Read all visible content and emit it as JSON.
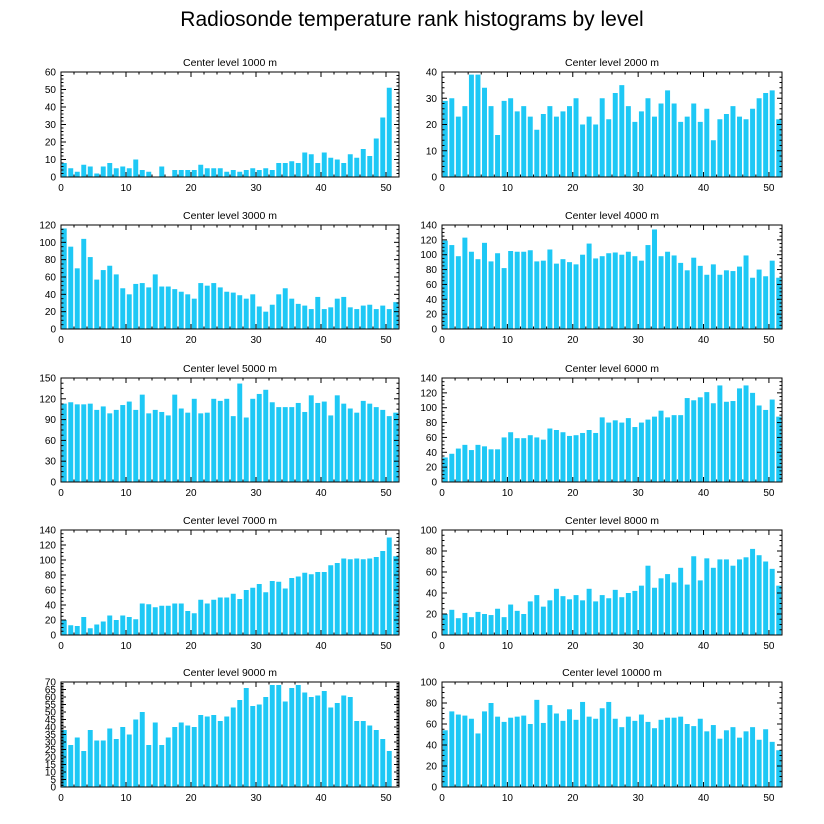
{
  "title": "Radiosonde temperature rank histograms by level",
  "colors": {
    "bar": "#1EC8F5",
    "axis": "#000000"
  },
  "chart_data": [
    {
      "type": "bar",
      "title": "Center level 1000 m",
      "xlabel": "",
      "ylabel": "",
      "xlim": [
        0,
        52
      ],
      "xticks": [
        0,
        10,
        20,
        30,
        40,
        50
      ],
      "ylim": [
        0,
        60
      ],
      "yticks": [
        0,
        10,
        20,
        30,
        40,
        50,
        60
      ],
      "x": [
        0,
        1,
        2,
        3,
        4,
        5,
        6,
        7,
        8,
        9,
        10,
        11,
        12,
        13,
        14,
        15,
        16,
        17,
        18,
        19,
        20,
        21,
        22,
        23,
        24,
        25,
        26,
        27,
        28,
        29,
        30,
        31,
        32,
        33,
        34,
        35,
        36,
        37,
        38,
        39,
        40,
        41,
        42,
        43,
        44,
        45,
        46,
        47,
        48,
        49,
        50,
        51
      ],
      "values": [
        8,
        5,
        3,
        7,
        6,
        2,
        6,
        8,
        5,
        6,
        5,
        10,
        4,
        3,
        0,
        6,
        0,
        4,
        4,
        4,
        4,
        7,
        5,
        5,
        5,
        3,
        4,
        3,
        4,
        5,
        4,
        5,
        4,
        8,
        8,
        9,
        8,
        14,
        13,
        8,
        14,
        11,
        10,
        8,
        13,
        11,
        16,
        12,
        22,
        34,
        51,
        0
      ]
    },
    {
      "type": "bar",
      "title": "Center level 2000 m",
      "xlabel": "",
      "ylabel": "",
      "xlim": [
        0,
        52
      ],
      "xticks": [
        0,
        10,
        20,
        30,
        40,
        50
      ],
      "ylim": [
        0,
        40
      ],
      "yticks": [
        0,
        10,
        20,
        30,
        40
      ],
      "x": [
        0,
        1,
        2,
        3,
        4,
        5,
        6,
        7,
        8,
        9,
        10,
        11,
        12,
        13,
        14,
        15,
        16,
        17,
        18,
        19,
        20,
        21,
        22,
        23,
        24,
        25,
        26,
        27,
        28,
        29,
        30,
        31,
        32,
        33,
        34,
        35,
        36,
        37,
        38,
        39,
        40,
        41,
        42,
        43,
        44,
        45,
        46,
        47,
        48,
        49,
        50,
        51
      ],
      "values": [
        29,
        30,
        23,
        27,
        39,
        39,
        34,
        27,
        16,
        29,
        30,
        25,
        27,
        23,
        18,
        24,
        27,
        23,
        25,
        27,
        30,
        20,
        23,
        20,
        30,
        22,
        32,
        35,
        27,
        21,
        25,
        30,
        23,
        28,
        33,
        28,
        21,
        23,
        28,
        21,
        26,
        14,
        22,
        24,
        27,
        23,
        22,
        26,
        30,
        32,
        33,
        22
      ]
    },
    {
      "type": "bar",
      "title": "Center level 3000 m",
      "xlabel": "",
      "ylabel": "",
      "xlim": [
        0,
        52
      ],
      "xticks": [
        0,
        10,
        20,
        30,
        40,
        50
      ],
      "ylim": [
        0,
        120
      ],
      "yticks": [
        0,
        20,
        40,
        60,
        80,
        100,
        120
      ],
      "x": [
        0,
        1,
        2,
        3,
        4,
        5,
        6,
        7,
        8,
        9,
        10,
        11,
        12,
        13,
        14,
        15,
        16,
        17,
        18,
        19,
        20,
        21,
        22,
        23,
        24,
        25,
        26,
        27,
        28,
        29,
        30,
        31,
        32,
        33,
        34,
        35,
        36,
        37,
        38,
        39,
        40,
        41,
        42,
        43,
        44,
        45,
        46,
        47,
        48,
        49,
        50,
        51
      ],
      "values": [
        116,
        95,
        70,
        104,
        83,
        57,
        68,
        73,
        63,
        47,
        40,
        52,
        53,
        48,
        63,
        49,
        49,
        46,
        43,
        40,
        35,
        53,
        50,
        53,
        48,
        43,
        42,
        39,
        35,
        40,
        26,
        20,
        28,
        40,
        47,
        35,
        29,
        27,
        23,
        37,
        23,
        25,
        35,
        37,
        25,
        23,
        27,
        28,
        23,
        27,
        23,
        31
      ]
    },
    {
      "type": "bar",
      "title": "Center level 4000 m",
      "xlabel": "",
      "ylabel": "",
      "xlim": [
        0,
        52
      ],
      "xticks": [
        0,
        10,
        20,
        30,
        40,
        50
      ],
      "ylim": [
        0,
        140
      ],
      "yticks": [
        0,
        20,
        40,
        60,
        80,
        100,
        120,
        140
      ],
      "x": [
        0,
        1,
        2,
        3,
        4,
        5,
        6,
        7,
        8,
        9,
        10,
        11,
        12,
        13,
        14,
        15,
        16,
        17,
        18,
        19,
        20,
        21,
        22,
        23,
        24,
        25,
        26,
        27,
        28,
        29,
        30,
        31,
        32,
        33,
        34,
        35,
        36,
        37,
        38,
        39,
        40,
        41,
        42,
        43,
        44,
        45,
        46,
        47,
        48,
        49,
        50,
        51
      ],
      "values": [
        119,
        113,
        98,
        123,
        104,
        94,
        116,
        91,
        102,
        82,
        105,
        104,
        104,
        106,
        91,
        92,
        107,
        88,
        94,
        90,
        87,
        100,
        115,
        95,
        98,
        102,
        103,
        100,
        104,
        98,
        92,
        113,
        134,
        98,
        104,
        99,
        89,
        79,
        96,
        85,
        73,
        87,
        73,
        79,
        78,
        84,
        99,
        69,
        80,
        71,
        92,
        69
      ]
    },
    {
      "type": "bar",
      "title": "Center level 5000 m",
      "xlabel": "",
      "ylabel": "",
      "xlim": [
        0,
        52
      ],
      "xticks": [
        0,
        10,
        20,
        30,
        40,
        50
      ],
      "ylim": [
        0,
        150
      ],
      "yticks": [
        0,
        30,
        60,
        90,
        120,
        150
      ],
      "x": [
        0,
        1,
        2,
        3,
        4,
        5,
        6,
        7,
        8,
        9,
        10,
        11,
        12,
        13,
        14,
        15,
        16,
        17,
        18,
        19,
        20,
        21,
        22,
        23,
        24,
        25,
        26,
        27,
        28,
        29,
        30,
        31,
        32,
        33,
        34,
        35,
        36,
        37,
        38,
        39,
        40,
        41,
        42,
        43,
        44,
        45,
        46,
        47,
        48,
        49,
        50,
        51
      ],
      "values": [
        113,
        115,
        112,
        112,
        113,
        104,
        109,
        99,
        104,
        111,
        116,
        104,
        126,
        99,
        104,
        101,
        96,
        126,
        106,
        100,
        120,
        99,
        100,
        120,
        117,
        120,
        95,
        142,
        93,
        120,
        127,
        133,
        115,
        108,
        108,
        108,
        114,
        101,
        125,
        114,
        116,
        96,
        125,
        113,
        106,
        100,
        117,
        113,
        108,
        104,
        95,
        100
      ]
    },
    {
      "type": "bar",
      "title": "Center level 6000 m",
      "xlabel": "",
      "ylabel": "",
      "xlim": [
        0,
        52
      ],
      "xticks": [
        0,
        10,
        20,
        30,
        40,
        50
      ],
      "ylim": [
        0,
        140
      ],
      "yticks": [
        0,
        20,
        40,
        60,
        80,
        100,
        120,
        140
      ],
      "x": [
        0,
        1,
        2,
        3,
        4,
        5,
        6,
        7,
        8,
        9,
        10,
        11,
        12,
        13,
        14,
        15,
        16,
        17,
        18,
        19,
        20,
        21,
        22,
        23,
        24,
        25,
        26,
        27,
        28,
        29,
        30,
        31,
        32,
        33,
        34,
        35,
        36,
        37,
        38,
        39,
        40,
        41,
        42,
        43,
        44,
        45,
        46,
        47,
        48,
        49,
        50,
        51
      ],
      "values": [
        33,
        38,
        45,
        50,
        43,
        50,
        48,
        44,
        44,
        60,
        67,
        59,
        59,
        63,
        60,
        57,
        72,
        70,
        67,
        62,
        63,
        66,
        70,
        66,
        87,
        80,
        83,
        80,
        86,
        74,
        80,
        84,
        88,
        96,
        87,
        90,
        90,
        113,
        110,
        114,
        121,
        106,
        130,
        108,
        109,
        126,
        130,
        120,
        103,
        97,
        111,
        88
      ]
    },
    {
      "type": "bar",
      "title": "Center level 7000 m",
      "xlabel": "",
      "ylabel": "",
      "xlim": [
        0,
        52
      ],
      "xticks": [
        0,
        10,
        20,
        30,
        40,
        50
      ],
      "ylim": [
        0,
        140
      ],
      "yticks": [
        0,
        20,
        40,
        60,
        80,
        100,
        120,
        140
      ],
      "x": [
        0,
        1,
        2,
        3,
        4,
        5,
        6,
        7,
        8,
        9,
        10,
        11,
        12,
        13,
        14,
        15,
        16,
        17,
        18,
        19,
        20,
        21,
        22,
        23,
        24,
        25,
        26,
        27,
        28,
        29,
        30,
        31,
        32,
        33,
        34,
        35,
        36,
        37,
        38,
        39,
        40,
        41,
        42,
        43,
        44,
        45,
        46,
        47,
        48,
        49,
        50,
        51
      ],
      "values": [
        20,
        13,
        12,
        24,
        9,
        14,
        18,
        26,
        20,
        26,
        24,
        21,
        42,
        41,
        37,
        39,
        39,
        42,
        42,
        32,
        29,
        47,
        42,
        47,
        50,
        50,
        55,
        48,
        60,
        63,
        68,
        57,
        72,
        71,
        62,
        76,
        78,
        83,
        81,
        84,
        84,
        93,
        96,
        102,
        101,
        102,
        101,
        102,
        104,
        112,
        130,
        105
      ]
    },
    {
      "type": "bar",
      "title": "Center level 8000 m",
      "xlabel": "",
      "ylabel": "",
      "xlim": [
        0,
        52
      ],
      "xticks": [
        0,
        10,
        20,
        30,
        40,
        50
      ],
      "ylim": [
        0,
        100
      ],
      "yticks": [
        0,
        20,
        40,
        60,
        80,
        100
      ],
      "x": [
        0,
        1,
        2,
        3,
        4,
        5,
        6,
        7,
        8,
        9,
        10,
        11,
        12,
        13,
        14,
        15,
        16,
        17,
        18,
        19,
        20,
        21,
        22,
        23,
        24,
        25,
        26,
        27,
        28,
        29,
        30,
        31,
        32,
        33,
        34,
        35,
        36,
        37,
        38,
        39,
        40,
        41,
        42,
        43,
        44,
        45,
        46,
        47,
        48,
        49,
        50,
        51
      ],
      "values": [
        20,
        24,
        16,
        21,
        17,
        22,
        20,
        19,
        25,
        17,
        29,
        23,
        20,
        32,
        38,
        27,
        33,
        44,
        37,
        34,
        38,
        33,
        44,
        32,
        38,
        35,
        43,
        36,
        40,
        42,
        47,
        66,
        45,
        54,
        58,
        50,
        64,
        48,
        75,
        52,
        73,
        64,
        72,
        72,
        66,
        72,
        74,
        82,
        76,
        70,
        63,
        47
      ]
    },
    {
      "type": "bar",
      "title": "Center level 9000 m",
      "xlabel": "",
      "ylabel": "",
      "xlim": [
        0,
        52
      ],
      "xticks": [
        0,
        10,
        20,
        30,
        40,
        50
      ],
      "ylim": [
        0,
        70
      ],
      "yticks": [
        0,
        5,
        10,
        15,
        20,
        25,
        30,
        35,
        40,
        45,
        50,
        55,
        60,
        65,
        70
      ],
      "x": [
        0,
        1,
        2,
        3,
        4,
        5,
        6,
        7,
        8,
        9,
        10,
        11,
        12,
        13,
        14,
        15,
        16,
        17,
        18,
        19,
        20,
        21,
        22,
        23,
        24,
        25,
        26,
        27,
        28,
        29,
        30,
        31,
        32,
        33,
        34,
        35,
        36,
        37,
        38,
        39,
        40,
        41,
        42,
        43,
        44,
        45,
        46,
        47,
        48,
        49,
        50,
        51
      ],
      "values": [
        38,
        28,
        33,
        24,
        38,
        31,
        31,
        39,
        32,
        40,
        35,
        45,
        50,
        28,
        43,
        28,
        33,
        40,
        43,
        41,
        40,
        48,
        47,
        48,
        44,
        47,
        53,
        58,
        66,
        54,
        55,
        60,
        68,
        68,
        57,
        66,
        68,
        63,
        60,
        61,
        64,
        53,
        56,
        61,
        60,
        44,
        44,
        41,
        38,
        32,
        24,
        0
      ]
    },
    {
      "type": "bar",
      "title": "Center level 10000 m",
      "xlabel": "",
      "ylabel": "",
      "xlim": [
        0,
        52
      ],
      "xticks": [
        0,
        10,
        20,
        30,
        40,
        50
      ],
      "ylim": [
        0,
        100
      ],
      "yticks": [
        0,
        20,
        40,
        60,
        80,
        100
      ],
      "x": [
        0,
        1,
        2,
        3,
        4,
        5,
        6,
        7,
        8,
        9,
        10,
        11,
        12,
        13,
        14,
        15,
        16,
        17,
        18,
        19,
        20,
        21,
        22,
        23,
        24,
        25,
        26,
        27,
        28,
        29,
        30,
        31,
        32,
        33,
        34,
        35,
        36,
        37,
        38,
        39,
        40,
        41,
        42,
        43,
        44,
        45,
        46,
        47,
        48,
        49,
        50,
        51
      ],
      "values": [
        54,
        72,
        69,
        68,
        65,
        51,
        72,
        80,
        67,
        62,
        66,
        67,
        68,
        60,
        83,
        61,
        78,
        70,
        63,
        74,
        64,
        81,
        67,
        65,
        75,
        81,
        65,
        57,
        67,
        63,
        69,
        62,
        56,
        64,
        66,
        66,
        67,
        60,
        58,
        65,
        53,
        59,
        46,
        54,
        57,
        47,
        53,
        57,
        45,
        55,
        43,
        35
      ]
    }
  ]
}
